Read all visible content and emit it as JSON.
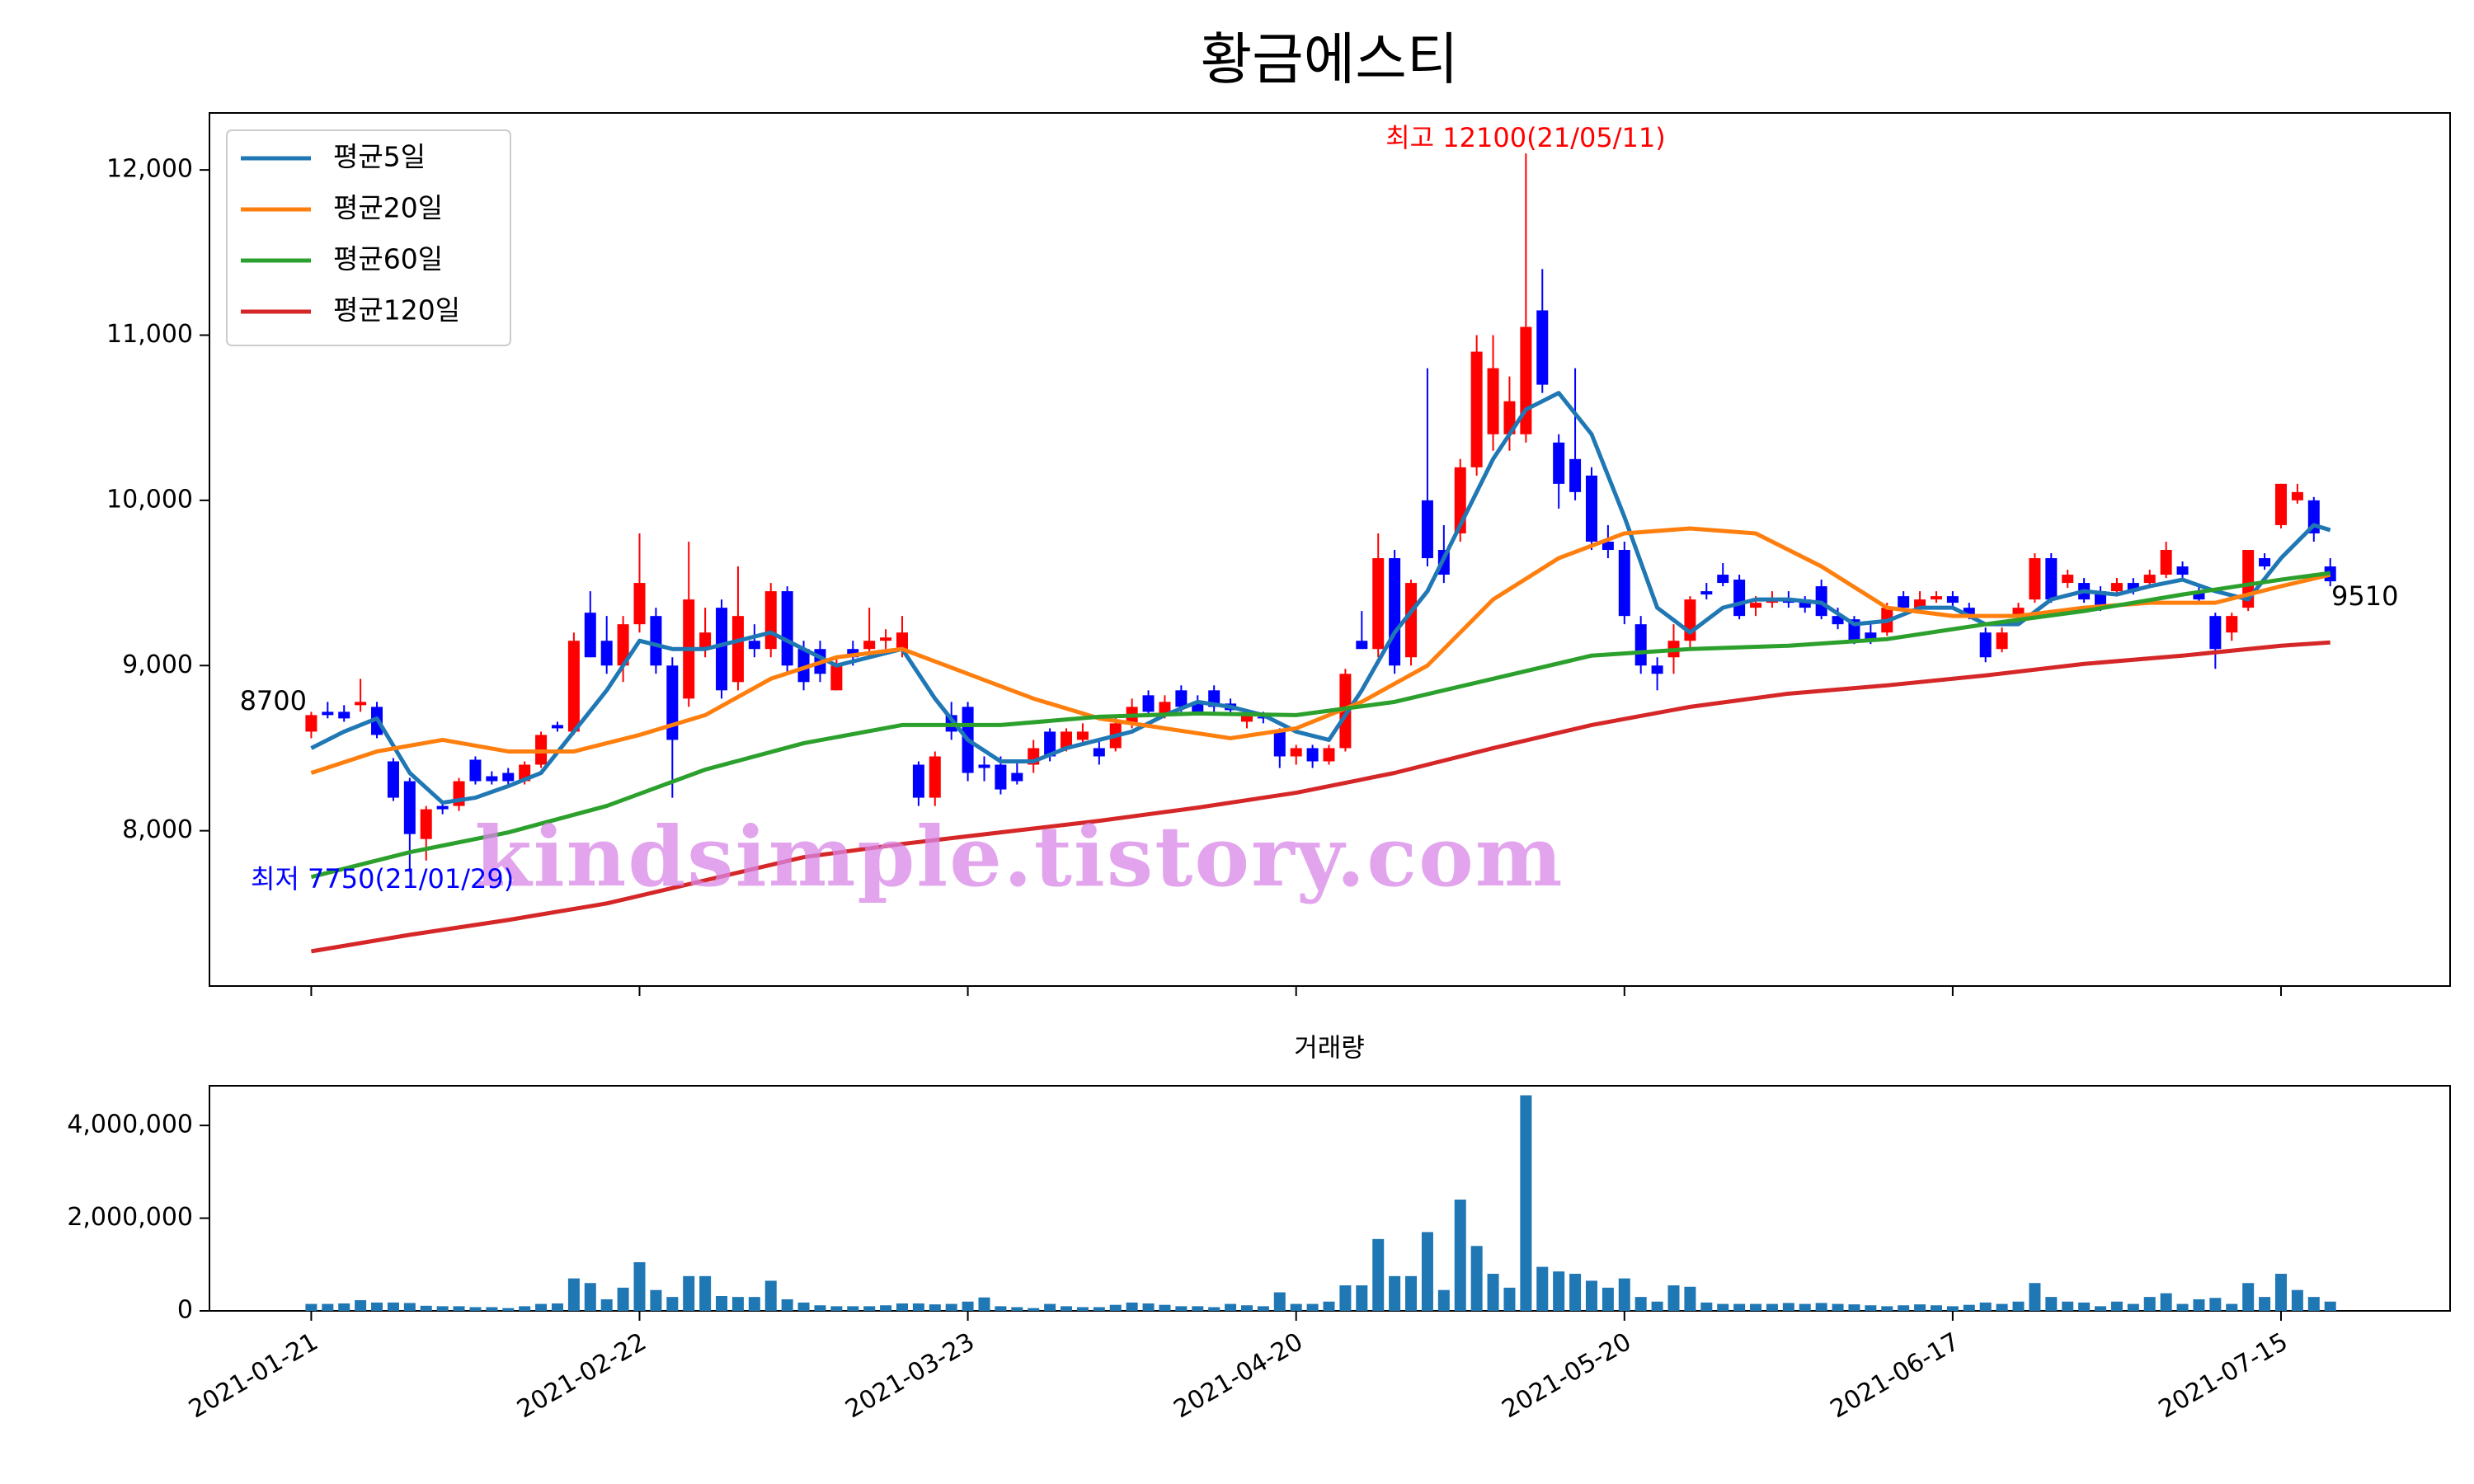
{
  "chart_data": [
    {
      "type": "candlestick",
      "title": "황금에스티",
      "up_color": "#ff0000",
      "down_color": "#0000ff",
      "xlim": [
        -6.2,
        130.3
      ],
      "ylim": [
        7060,
        12345
      ],
      "yticks": [
        {
          "value": 8000,
          "label": "8,000"
        },
        {
          "value": 9000,
          "label": "9,000"
        },
        {
          "value": 10000,
          "label": "10,000"
        },
        {
          "value": 11000,
          "label": "11,000"
        },
        {
          "value": 12000,
          "label": "12,000"
        }
      ],
      "grid": false,
      "legend": "upper left",
      "candles": [
        [
          8600,
          8720,
          8560,
          8700
        ],
        [
          8720,
          8780,
          8680,
          8700
        ],
        [
          8720,
          8760,
          8660,
          8680
        ],
        [
          8760,
          8920,
          8720,
          8780
        ],
        [
          8750,
          8780,
          8560,
          8580
        ],
        [
          8420,
          8440,
          8180,
          8200
        ],
        [
          8300,
          8320,
          7750,
          7980
        ],
        [
          7950,
          8150,
          7820,
          8130
        ],
        [
          8150,
          8180,
          8100,
          8130
        ],
        [
          8150,
          8320,
          8120,
          8300
        ],
        [
          8430,
          8450,
          8280,
          8300
        ],
        [
          8330,
          8360,
          8280,
          8300
        ],
        [
          8350,
          8380,
          8280,
          8300
        ],
        [
          8300,
          8420,
          8280,
          8400
        ],
        [
          8400,
          8600,
          8380,
          8580
        ],
        [
          8640,
          8660,
          8600,
          8620
        ],
        [
          8600,
          9200,
          8580,
          9150
        ],
        [
          9320,
          9450,
          9050,
          9050
        ],
        [
          9150,
          9300,
          8950,
          9000
        ],
        [
          9000,
          9300,
          8900,
          9250
        ],
        [
          9250,
          9800,
          9200,
          9500
        ],
        [
          9300,
          9350,
          8950,
          9000
        ],
        [
          9000,
          9050,
          8200,
          8550
        ],
        [
          8800,
          9750,
          8750,
          9400
        ],
        [
          9100,
          9350,
          9050,
          9200
        ],
        [
          9350,
          9400,
          8800,
          8850
        ],
        [
          8900,
          9600,
          8850,
          9300
        ],
        [
          9150,
          9250,
          9050,
          9100
        ],
        [
          9100,
          9500,
          9050,
          9450
        ],
        [
          9450,
          9480,
          8950,
          9000
        ],
        [
          9100,
          9150,
          8850,
          8900
        ],
        [
          9100,
          9150,
          8900,
          8950
        ],
        [
          8850,
          9050,
          8850,
          9000
        ],
        [
          9100,
          9150,
          9000,
          9050
        ],
        [
          9100,
          9350,
          9050,
          9150
        ],
        [
          9150,
          9220,
          9100,
          9170
        ],
        [
          9100,
          9300,
          9050,
          9200
        ],
        [
          8400,
          8420,
          8150,
          8200
        ],
        [
          8200,
          8480,
          8150,
          8450
        ],
        [
          8700,
          8780,
          8550,
          8600
        ],
        [
          8750,
          8780,
          8300,
          8350
        ],
        [
          8400,
          8450,
          8300,
          8380
        ],
        [
          8400,
          8450,
          8220,
          8250
        ],
        [
          8350,
          8420,
          8280,
          8300
        ],
        [
          8400,
          8550,
          8350,
          8500
        ],
        [
          8600,
          8620,
          8420,
          8450
        ],
        [
          8500,
          8620,
          8480,
          8600
        ],
        [
          8550,
          8650,
          8520,
          8600
        ],
        [
          8500,
          8550,
          8400,
          8450
        ],
        [
          8500,
          8700,
          8480,
          8650
        ],
        [
          8650,
          8800,
          8620,
          8750
        ],
        [
          8820,
          8850,
          8700,
          8720
        ],
        [
          8700,
          8820,
          8680,
          8780
        ],
        [
          8850,
          8880,
          8720,
          8750
        ],
        [
          8780,
          8820,
          8700,
          8720
        ],
        [
          8850,
          8880,
          8720,
          8750
        ],
        [
          8770,
          8800,
          8700,
          8730
        ],
        [
          8660,
          8720,
          8620,
          8700
        ],
        [
          8690,
          8720,
          8650,
          8680
        ],
        [
          8600,
          8620,
          8380,
          8450
        ],
        [
          8450,
          8520,
          8400,
          8500
        ],
        [
          8500,
          8520,
          8380,
          8420
        ],
        [
          8420,
          8520,
          8400,
          8500
        ],
        [
          8500,
          8980,
          8480,
          8950
        ],
        [
          9150,
          9330,
          9100,
          9100
        ],
        [
          9100,
          9800,
          9050,
          9650
        ],
        [
          9650,
          9700,
          8950,
          9000
        ],
        [
          9050,
          9520,
          9000,
          9500
        ],
        [
          10000,
          10800,
          9600,
          9650
        ],
        [
          9700,
          9850,
          9500,
          9550
        ],
        [
          9800,
          10250,
          9750,
          10200
        ],
        [
          10200,
          11000,
          10150,
          10900
        ],
        [
          10400,
          11000,
          10300,
          10800
        ],
        [
          10400,
          10750,
          10300,
          10600
        ],
        [
          10400,
          12100,
          10350,
          11050
        ],
        [
          11150,
          11400,
          10650,
          10700
        ],
        [
          10350,
          10400,
          9950,
          10100
        ],
        [
          10250,
          10800,
          10000,
          10050
        ],
        [
          10150,
          10200,
          9700,
          9750
        ],
        [
          9750,
          9850,
          9650,
          9700
        ],
        [
          9700,
          9750,
          9250,
          9300
        ],
        [
          9250,
          9300,
          8950,
          9000
        ],
        [
          9000,
          9050,
          8850,
          8950
        ],
        [
          9050,
          9250,
          8950,
          9150
        ],
        [
          9150,
          9420,
          9100,
          9400
        ],
        [
          9450,
          9500,
          9400,
          9430
        ],
        [
          9550,
          9620,
          9480,
          9500
        ],
        [
          9520,
          9550,
          9280,
          9300
        ],
        [
          9350,
          9420,
          9300,
          9380
        ],
        [
          9380,
          9450,
          9350,
          9400
        ],
        [
          9400,
          9450,
          9350,
          9380
        ],
        [
          9400,
          9420,
          9320,
          9350
        ],
        [
          9480,
          9520,
          9280,
          9300
        ],
        [
          9300,
          9350,
          9220,
          9250
        ],
        [
          9280,
          9300,
          9130,
          9150
        ],
        [
          9200,
          9250,
          9130,
          9150
        ],
        [
          9200,
          9380,
          9180,
          9350
        ],
        [
          9420,
          9450,
          9330,
          9350
        ],
        [
          9350,
          9450,
          9330,
          9400
        ],
        [
          9400,
          9450,
          9380,
          9420
        ],
        [
          9420,
          9450,
          9350,
          9380
        ],
        [
          9350,
          9380,
          9280,
          9300
        ],
        [
          9200,
          9230,
          9020,
          9050
        ],
        [
          9100,
          9230,
          9080,
          9200
        ],
        [
          9300,
          9380,
          9280,
          9350
        ],
        [
          9400,
          9680,
          9380,
          9650
        ],
        [
          9650,
          9680,
          9380,
          9400
        ],
        [
          9500,
          9580,
          9470,
          9550
        ],
        [
          9500,
          9530,
          9380,
          9400
        ],
        [
          9450,
          9480,
          9330,
          9350
        ],
        [
          9450,
          9530,
          9420,
          9500
        ],
        [
          9500,
          9530,
          9430,
          9450
        ],
        [
          9500,
          9580,
          9480,
          9550
        ],
        [
          9550,
          9750,
          9530,
          9700
        ],
        [
          9600,
          9630,
          9520,
          9550
        ],
        [
          9450,
          9480,
          9380,
          9400
        ],
        [
          9300,
          9320,
          8980,
          9100
        ],
        [
          9200,
          9320,
          9150,
          9300
        ],
        [
          9350,
          9700,
          9330,
          9700
        ],
        [
          9650,
          9680,
          9580,
          9600
        ],
        [
          9850,
          10100,
          9830,
          10100
        ],
        [
          10000,
          10100,
          9980,
          10050
        ],
        [
          10000,
          10020,
          9750,
          9800
        ],
        [
          9600,
          9650,
          9480,
          9510
        ]
      ],
      "series": [
        {
          "name": "평균5일",
          "color": "#1f77b4",
          "x": [
            0,
            2,
            4,
            6,
            8,
            10,
            12,
            14,
            16,
            18,
            20,
            22,
            24,
            26,
            28,
            30,
            32,
            34,
            36,
            38,
            40,
            42,
            44,
            46,
            48,
            50,
            52,
            54,
            56,
            58,
            60,
            62,
            64,
            66,
            68,
            70,
            72,
            74,
            76,
            78,
            80,
            82,
            84,
            86,
            88,
            90,
            92,
            94,
            96,
            98,
            100,
            102,
            104,
            106,
            108,
            110,
            112,
            114,
            116,
            118,
            120,
            122,
            123
          ],
          "values": [
            8500,
            8600,
            8680,
            8350,
            8170,
            8200,
            8270,
            8350,
            8600,
            8850,
            9150,
            9100,
            9100,
            9150,
            9200,
            9100,
            9000,
            9050,
            9100,
            8800,
            8550,
            8420,
            8420,
            8500,
            8550,
            8600,
            8700,
            8780,
            8750,
            8700,
            8600,
            8550,
            8850,
            9200,
            9450,
            9850,
            10250,
            10550,
            10650,
            10400,
            9900,
            9350,
            9200,
            9350,
            9400,
            9400,
            9380,
            9250,
            9270,
            9350,
            9350,
            9250,
            9250,
            9400,
            9450,
            9430,
            9480,
            9520,
            9450,
            9400,
            9650,
            9850,
            9820
          ]
        },
        {
          "name": "평균20일",
          "color": "#ff7f0e",
          "x": [
            0,
            4,
            8,
            12,
            16,
            20,
            24,
            28,
            32,
            36,
            40,
            44,
            48,
            52,
            56,
            60,
            64,
            68,
            72,
            76,
            80,
            84,
            88,
            92,
            96,
            100,
            104,
            108,
            112,
            116,
            120,
            123
          ],
          "values": [
            8350,
            8480,
            8550,
            8480,
            8480,
            8580,
            8700,
            8920,
            9050,
            9100,
            8950,
            8800,
            8680,
            8620,
            8560,
            8620,
            8780,
            9000,
            9400,
            9650,
            9800,
            9830,
            9800,
            9600,
            9350,
            9300,
            9300,
            9350,
            9380,
            9380,
            9480,
            9550
          ]
        },
        {
          "name": "평균60일",
          "color": "#2ca02c",
          "x": [
            0,
            6,
            12,
            18,
            24,
            30,
            36,
            42,
            48,
            54,
            60,
            66,
            72,
            78,
            84,
            90,
            96,
            102,
            108,
            114,
            120,
            123
          ],
          "values": [
            7720,
            7870,
            7990,
            8150,
            8370,
            8530,
            8640,
            8640,
            8690,
            8710,
            8700,
            8780,
            8920,
            9060,
            9100,
            9120,
            9160,
            9250,
            9330,
            9430,
            9520,
            9560
          ]
        },
        {
          "name": "평균120일",
          "color": "#d62728",
          "x": [
            0,
            6,
            12,
            18,
            24,
            30,
            36,
            42,
            48,
            54,
            60,
            66,
            72,
            78,
            84,
            90,
            96,
            102,
            108,
            114,
            120,
            123
          ],
          "values": [
            7270,
            7370,
            7460,
            7560,
            7700,
            7840,
            7920,
            7990,
            8060,
            8140,
            8230,
            8350,
            8500,
            8640,
            8750,
            8830,
            8880,
            8940,
            9010,
            9060,
            9120,
            9140
          ]
        }
      ],
      "annotations": [
        {
          "text": "최고 12100(21/05/11)",
          "color": "#ff0000"
        },
        {
          "text": "최저 7750(21/01/29)",
          "color": "#0000ff"
        },
        {
          "text": "8700",
          "color": "#000000"
        },
        {
          "text": "9510",
          "color": "#000000"
        }
      ],
      "watermark": "kindsimple.tistory.com"
    },
    {
      "type": "bar",
      "title": "거래량",
      "color": "#1f77b4",
      "xlim": [
        -6.2,
        130.3
      ],
      "ylim": [
        0,
        4855000
      ],
      "yticks": [
        0,
        {
          "value": 2000000,
          "label": "2,000,000"
        },
        {
          "value": 4000000,
          "label": "4,000,000"
        }
      ],
      "xticks": [
        {
          "value": 0,
          "label": "2021-01-21"
        },
        {
          "value": 20,
          "label": "2021-02-22"
        },
        {
          "value": 40,
          "label": "2021-03-23"
        },
        {
          "value": 60,
          "label": "2021-04-20"
        },
        {
          "value": 80,
          "label": "2021-05-20"
        },
        {
          "value": 100,
          "label": "2021-06-17"
        },
        {
          "value": 120,
          "label": "2021-07-15"
        }
      ],
      "values": [
        150000,
        150000,
        160000,
        230000,
        180000,
        180000,
        170000,
        110000,
        100000,
        100000,
        80000,
        80000,
        60000,
        100000,
        150000,
        160000,
        700000,
        600000,
        250000,
        500000,
        1050000,
        450000,
        300000,
        750000,
        750000,
        320000,
        300000,
        300000,
        650000,
        250000,
        180000,
        120000,
        100000,
        100000,
        100000,
        120000,
        160000,
        160000,
        140000,
        150000,
        200000,
        290000,
        100000,
        80000,
        60000,
        150000,
        100000,
        80000,
        80000,
        130000,
        180000,
        160000,
        130000,
        100000,
        100000,
        80000,
        150000,
        120000,
        100000,
        400000,
        150000,
        150000,
        200000,
        550000,
        550000,
        1550000,
        750000,
        750000,
        1700000,
        450000,
        2400000,
        1400000,
        800000,
        500000,
        4650000,
        950000,
        850000,
        800000,
        650000,
        500000,
        700000,
        300000,
        200000,
        550000,
        520000,
        180000,
        150000,
        150000,
        150000,
        150000,
        170000,
        150000,
        170000,
        150000,
        140000,
        120000,
        100000,
        120000,
        140000,
        120000,
        100000,
        130000,
        180000,
        150000,
        200000,
        600000,
        300000,
        200000,
        180000,
        100000,
        200000,
        150000,
        300000,
        380000,
        150000,
        250000,
        280000,
        150000,
        600000,
        300000,
        800000,
        450000,
        300000,
        200000
      ]
    }
  ]
}
